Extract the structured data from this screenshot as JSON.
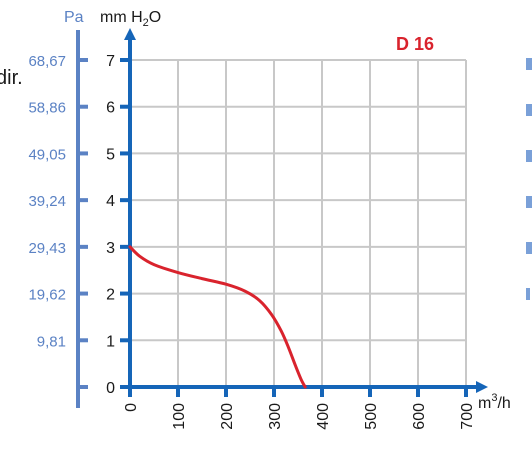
{
  "chart_data": {
    "type": "line",
    "model_label": "D 16",
    "y_unit": "mm H2O",
    "y_unit_parts": {
      "base": "mm H",
      "sub": "2",
      "tail": "O"
    },
    "pa_unit": "Pa",
    "x_unit": "m³/h",
    "x_unit_parts": {
      "base": "m",
      "sup": "3",
      "tail": "/h"
    },
    "side_text": "dir.",
    "xlim": [
      0,
      700
    ],
    "ylim": [
      0,
      7
    ],
    "x_ticks": [
      "0",
      "100",
      "200",
      "300",
      "400",
      "500",
      "600",
      "700"
    ],
    "y_ticks": [
      "0",
      "1",
      "2",
      "3",
      "4",
      "5",
      "6",
      "7"
    ],
    "pa_ticks": [
      {
        "mm": 1,
        "label": "9,81"
      },
      {
        "mm": 2,
        "label": "19,62"
      },
      {
        "mm": 3,
        "label": "29,43"
      },
      {
        "mm": 4,
        "label": "39,24"
      },
      {
        "mm": 5,
        "label": "49,05"
      },
      {
        "mm": 6,
        "label": "58,86"
      },
      {
        "mm": 7,
        "label": "68,67"
      }
    ],
    "grid": true,
    "colors": {
      "curve": "#d9232d",
      "axis": "#1565b8",
      "pa_axis": "#5b82c4",
      "grid": "#c8c8c8"
    },
    "series": [
      {
        "x": [
          0,
          20,
          50,
          100,
          150,
          200,
          240,
          270,
          295,
          315,
          330,
          345,
          357,
          365
        ],
        "y": [
          3.0,
          2.8,
          2.62,
          2.45,
          2.32,
          2.2,
          2.05,
          1.85,
          1.55,
          1.2,
          0.85,
          0.45,
          0.15,
          0
        ]
      }
    ]
  }
}
